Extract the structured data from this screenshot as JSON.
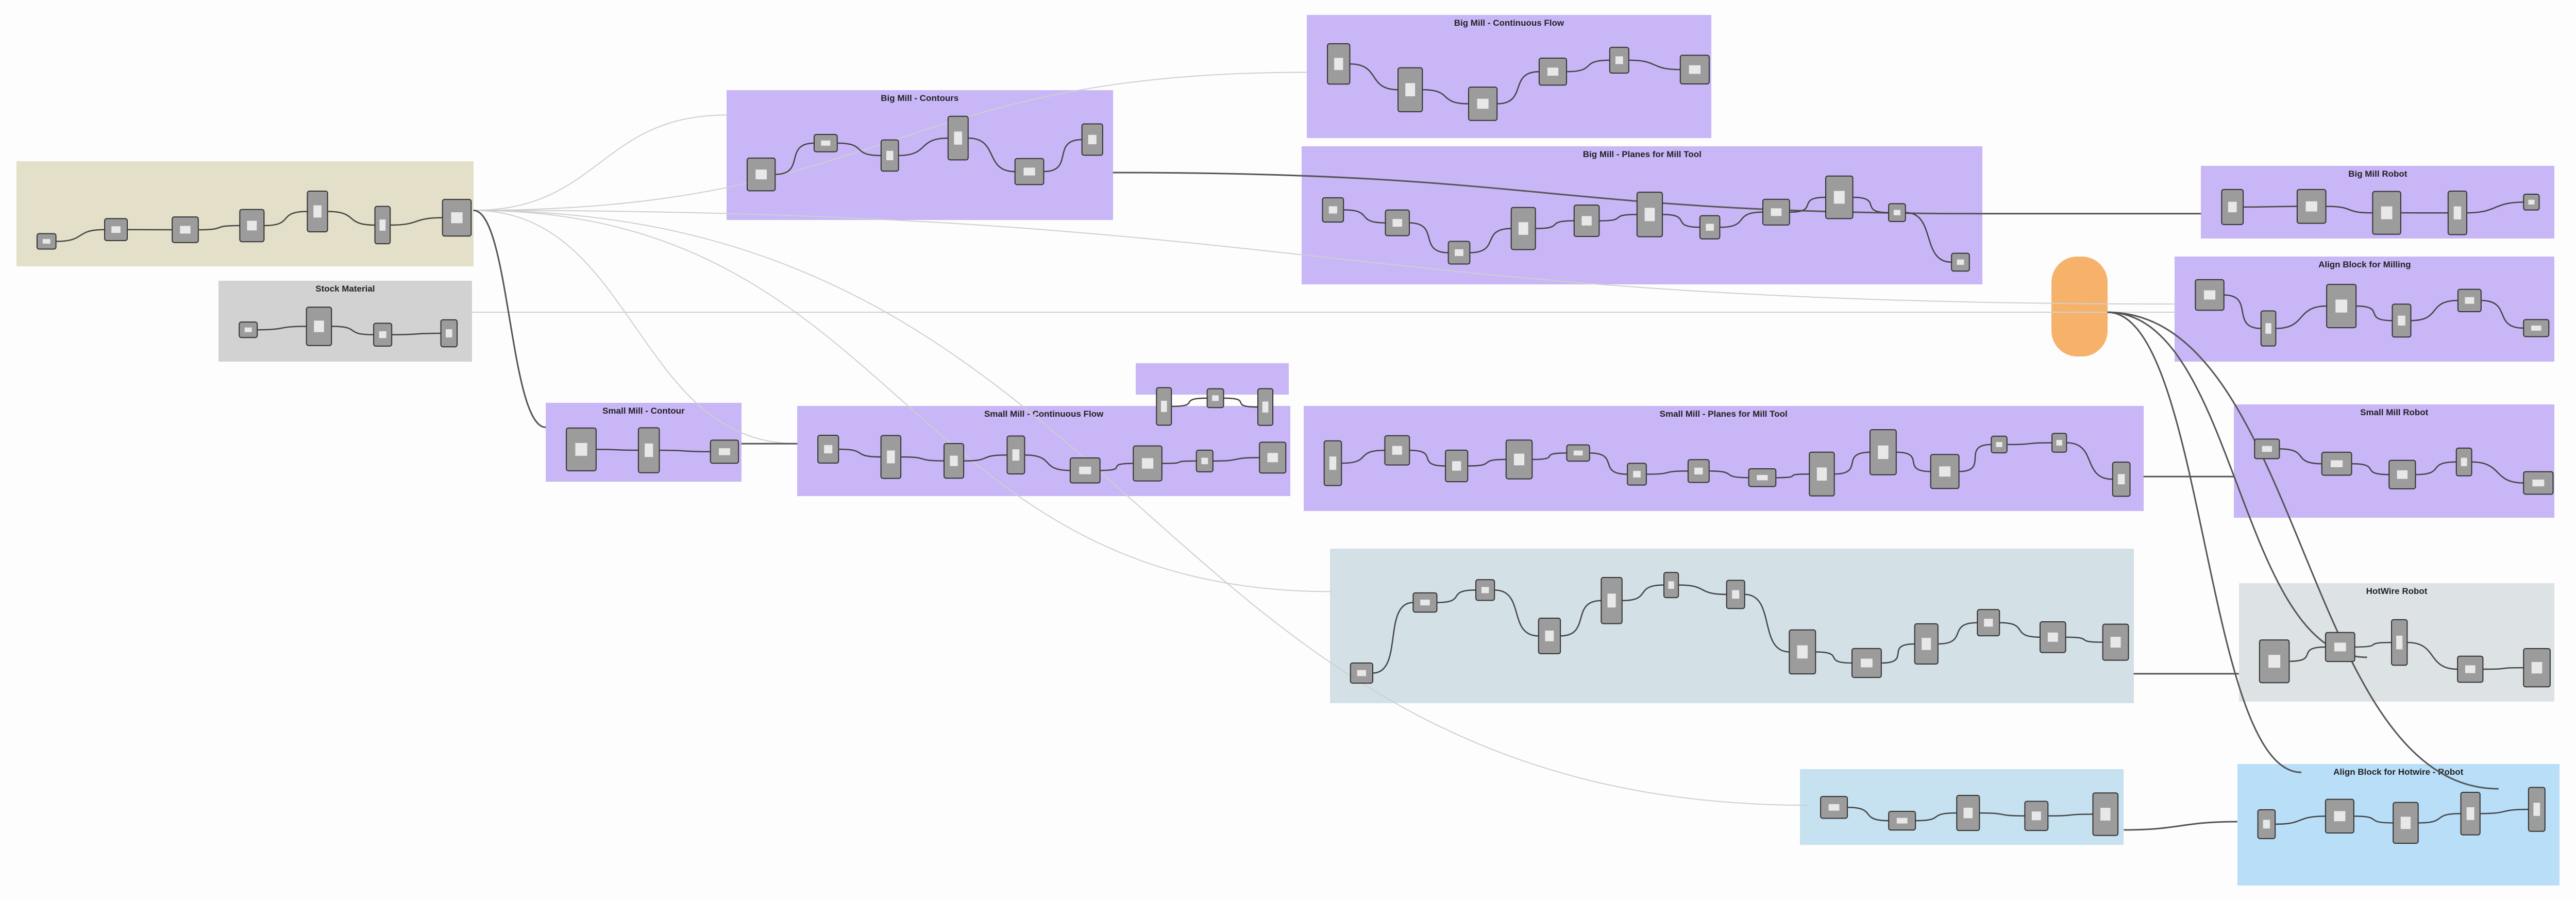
{
  "groups": [
    {
      "title": "Big Mill - Continuous Flow"
    },
    {
      "title": "Big Mill - Contours"
    },
    {
      "title": "Big Mill - Planes for Mill Tool"
    },
    {
      "title": "Big Mill Robot"
    },
    {
      "title": "Stock Material"
    },
    {
      "title": "Align Block for Milling"
    },
    {
      "title": "Small Mill - Contour"
    },
    {
      "title": "Small Mill - Continuous Flow"
    },
    {
      "title": "Small Mill - Planes for Mill Tool"
    },
    {
      "title": "Small Mill Robot"
    },
    {
      "title": "HotWire Robot"
    },
    {
      "title": "Align Block for Hotwire - Robot"
    }
  ]
}
